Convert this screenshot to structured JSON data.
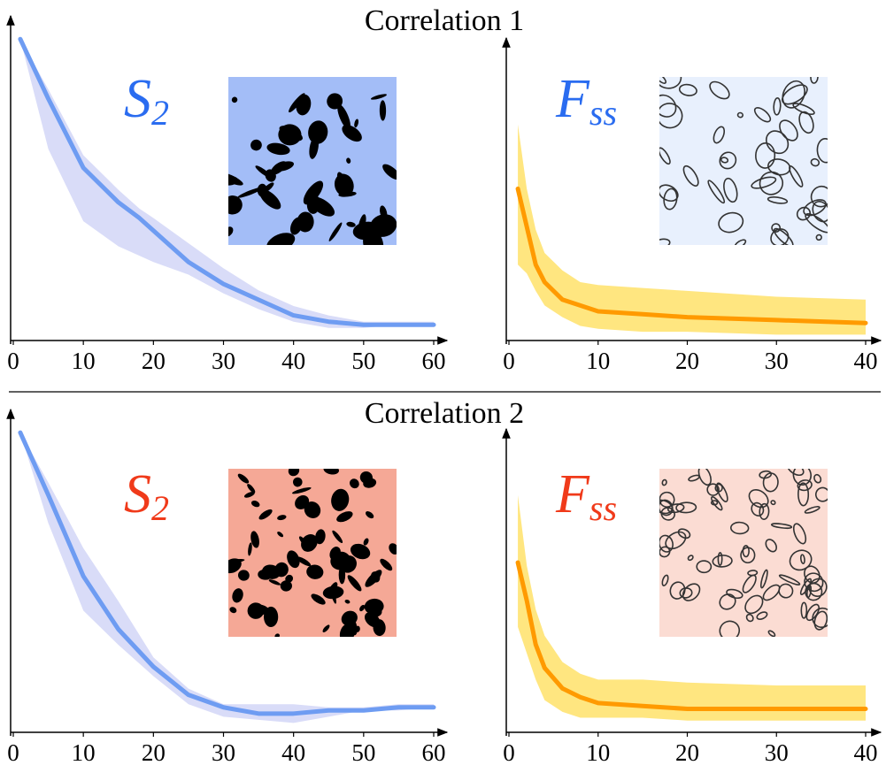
{
  "headers": [
    "Correlation 1",
    "Correlation 2"
  ],
  "chart_data": [
    {
      "type": "line",
      "label": "S",
      "label_sub": "2",
      "label_color": "#2a6cf0",
      "x": [
        1,
        5,
        10,
        15,
        18,
        20,
        25,
        30,
        35,
        40,
        45,
        50,
        55,
        60
      ],
      "series": [
        {
          "color": "#6e9cf2",
          "values": [
            0.96,
            0.77,
            0.55,
            0.44,
            0.39,
            0.35,
            0.25,
            0.18,
            0.13,
            0.08,
            0.06,
            0.05,
            0.05,
            0.05
          ]
        }
      ],
      "band": {
        "color": "#d9dcf8",
        "upper": [
          0.96,
          0.8,
          0.59,
          0.48,
          0.42,
          0.39,
          0.31,
          0.23,
          0.16,
          0.11,
          0.08,
          0.06,
          0.06,
          0.06
        ],
        "lower": [
          0.96,
          0.61,
          0.38,
          0.3,
          0.27,
          0.25,
          0.21,
          0.15,
          0.1,
          0.06,
          0.04,
          0.04,
          0.05,
          0.05
        ]
      },
      "xlim": [
        0,
        60
      ],
      "xticks": [
        0,
        10,
        20,
        30,
        40,
        50,
        60
      ],
      "ylim": [
        0,
        1
      ]
    },
    {
      "type": "line",
      "label": "F",
      "label_sub": "ss",
      "label_color": "#2a6cf0",
      "x": [
        1,
        2,
        3,
        4,
        6,
        8,
        10,
        15,
        20,
        30,
        40
      ],
      "series": [
        {
          "color": "#ff9a00",
          "values": [
            0.52,
            0.39,
            0.26,
            0.2,
            0.14,
            0.12,
            0.1,
            0.09,
            0.08,
            0.07,
            0.06
          ]
        }
      ],
      "band": {
        "color": "#ffe680",
        "upper": [
          0.74,
          0.52,
          0.38,
          0.3,
          0.24,
          0.2,
          0.19,
          0.18,
          0.17,
          0.15,
          0.14
        ],
        "lower": [
          0.26,
          0.23,
          0.17,
          0.12,
          0.08,
          0.05,
          0.04,
          0.03,
          0.03,
          0.02,
          0.02
        ]
      },
      "xlim": [
        0,
        40
      ],
      "xticks": [
        0,
        10,
        20,
        30,
        40
      ],
      "ylim": [
        0,
        1
      ]
    },
    {
      "type": "line",
      "label": "S",
      "label_sub": "2",
      "label_color": "#f03a1a",
      "x": [
        1,
        5,
        10,
        15,
        20,
        25,
        30,
        35,
        40,
        45,
        50,
        55,
        60
      ],
      "series": [
        {
          "color": "#6e9cf2",
          "values": [
            0.96,
            0.76,
            0.5,
            0.33,
            0.21,
            0.12,
            0.08,
            0.06,
            0.06,
            0.07,
            0.07,
            0.08,
            0.08
          ]
        }
      ],
      "band": {
        "color": "#d9dcf8",
        "upper": [
          0.96,
          0.8,
          0.59,
          0.42,
          0.24,
          0.14,
          0.09,
          0.09,
          0.09,
          0.08,
          0.08,
          0.09,
          0.09
        ],
        "lower": [
          0.96,
          0.67,
          0.39,
          0.28,
          0.18,
          0.09,
          0.05,
          0.04,
          0.03,
          0.05,
          0.07,
          0.07,
          0.08
        ]
      },
      "xlim": [
        0,
        60
      ],
      "xticks": [
        0,
        10,
        20,
        30,
        40,
        50,
        60
      ],
      "ylim": [
        0,
        1
      ]
    },
    {
      "type": "line",
      "label": "F",
      "label_sub": "ss",
      "label_color": "#f03a1a",
      "x": [
        1,
        2,
        3,
        4,
        6,
        8,
        10,
        15,
        20,
        30,
        40
      ],
      "series": [
        {
          "color": "#ff9a00",
          "values": [
            0.58,
            0.45,
            0.3,
            0.22,
            0.15,
            0.12,
            0.1,
            0.09,
            0.08,
            0.08,
            0.08
          ]
        }
      ],
      "band": {
        "color": "#ffe680",
        "upper": [
          0.81,
          0.57,
          0.42,
          0.33,
          0.24,
          0.2,
          0.18,
          0.18,
          0.17,
          0.16,
          0.16
        ],
        "lower": [
          0.36,
          0.27,
          0.18,
          0.11,
          0.07,
          0.05,
          0.05,
          0.05,
          0.04,
          0.04,
          0.04
        ]
      },
      "xlim": [
        0,
        40
      ],
      "xticks": [
        0,
        10,
        20,
        30,
        40
      ],
      "ylim": [
        0,
        1
      ]
    }
  ]
}
